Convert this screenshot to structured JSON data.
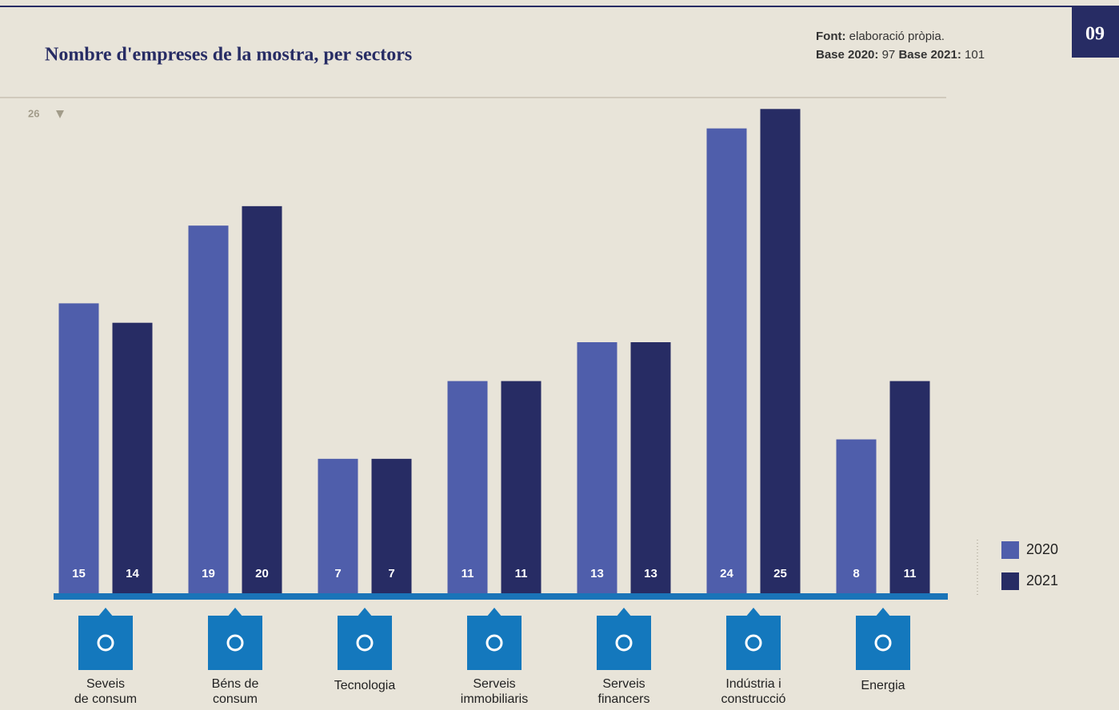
{
  "page_number": "09",
  "source": {
    "label": "Font:",
    "text": "elaboració pròpia."
  },
  "bases": [
    {
      "label": "Base 2020:",
      "value": 97
    },
    {
      "label": "Base 2021:",
      "value": 101
    }
  ],
  "chart_data": {
    "type": "bar",
    "title": "Nombre d'empreses de la mostra, per sectors",
    "categories": [
      [
        "Seveis",
        "de consum"
      ],
      [
        "Béns de",
        "consum"
      ],
      [
        "Tecnologia"
      ],
      [
        "Serveis",
        "immobiliaris"
      ],
      [
        "Serveis",
        "financers"
      ],
      [
        "Indústria i",
        "construcció"
      ],
      [
        "Energia"
      ]
    ],
    "series": [
      {
        "name": "2020",
        "color": "#4f5eab",
        "values": [
          15,
          19,
          7,
          11,
          13,
          24,
          8
        ]
      },
      {
        "name": "2021",
        "color": "#272c64",
        "values": [
          14,
          20,
          7,
          11,
          13,
          25,
          11
        ]
      }
    ],
    "ylim": [
      0,
      26
    ],
    "grid": false,
    "legend": "right"
  }
}
